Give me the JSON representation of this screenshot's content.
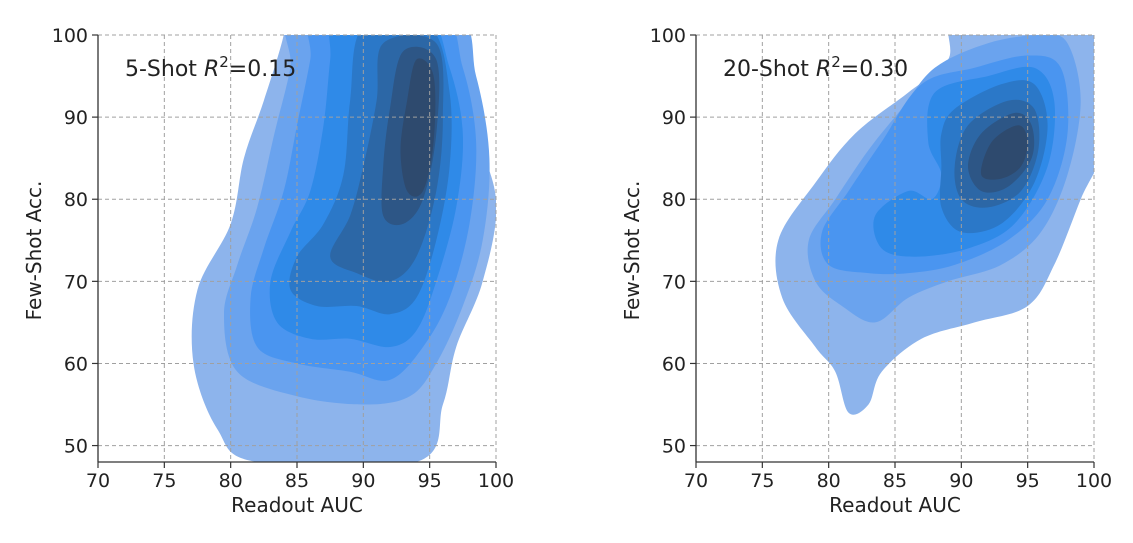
{
  "chart_data": [
    {
      "type": "area",
      "subtype": "kde-contour",
      "annotation": {
        "label": "5-Shot ",
        "r": "R",
        "sup": "2",
        "value": "=0.15"
      },
      "xlabel": "Readout AUC",
      "ylabel": "Few-Shot Acc.",
      "xlim": [
        70,
        100
      ],
      "ylim": [
        48,
        100
      ],
      "xticks": [
        70,
        75,
        80,
        85,
        90,
        95,
        100
      ],
      "yticks": [
        50,
        60,
        70,
        80,
        90,
        100
      ],
      "grid": true,
      "levels": [
        {
          "color": "#8db4ec",
          "polygon": [
            [
              84,
              103
            ],
            [
              96,
              103
            ],
            [
              98,
              90
            ],
            [
              100,
              80
            ],
            [
              99,
              70
            ],
            [
              97,
              62
            ],
            [
              96,
              55
            ],
            [
              94,
              48
            ],
            [
              82,
              48
            ],
            [
              79,
              52
            ],
            [
              77.2,
              60
            ],
            [
              77.5,
              69
            ],
            [
              80,
              77
            ],
            [
              81,
              85
            ],
            [
              82.5,
              92
            ],
            [
              84,
              100
            ]
          ]
        },
        {
          "color": "#6aa3ee",
          "polygon": [
            [
              85,
              103
            ],
            [
              96.5,
              103
            ],
            [
              98.5,
              95
            ],
            [
              99.5,
              85
            ],
            [
              99,
              75
            ],
            [
              97.5,
              67
            ],
            [
              95.5,
              60
            ],
            [
              93.5,
              56
            ],
            [
              90,
              55
            ],
            [
              85,
              56
            ],
            [
              80.5,
              59
            ],
            [
              79.5,
              66
            ],
            [
              80.5,
              72
            ],
            [
              82,
              79
            ],
            [
              83.3,
              88
            ],
            [
              84.5,
              96
            ]
          ]
        },
        {
          "color": "#4a95f0",
          "polygon": [
            [
              86.5,
              103
            ],
            [
              95.5,
              103
            ],
            [
              97.5,
              96
            ],
            [
              98.5,
              87
            ],
            [
              98,
              77
            ],
            [
              96.5,
              68
            ],
            [
              94.5,
              62
            ],
            [
              92,
              58
            ],
            [
              89,
              59
            ],
            [
              85,
              60
            ],
            [
              82,
              62
            ],
            [
              81.5,
              68
            ],
            [
              82.5,
              74
            ],
            [
              84,
              81
            ],
            [
              85,
              89
            ],
            [
              86,
              97
            ]
          ]
        },
        {
          "color": "#2f8ae8",
          "polygon": [
            [
              88,
              103
            ],
            [
              94.5,
              103
            ],
            [
              96.5,
              96
            ],
            [
              97.5,
              88
            ],
            [
              97,
              79
            ],
            [
              95.5,
              70
            ],
            [
              94,
              64
            ],
            [
              92,
              62
            ],
            [
              89,
              63
            ],
            [
              86,
              63
            ],
            [
              83.5,
              65
            ],
            [
              83,
              70
            ],
            [
              84.5,
              76
            ],
            [
              86,
              81
            ],
            [
              87,
              89
            ],
            [
              87.5,
              97
            ]
          ]
        },
        {
          "color": "#2b78c8",
          "polygon": [
            [
              90,
              101
            ],
            [
              95,
              101
            ],
            [
              96.5,
              93
            ],
            [
              96.5,
              84
            ],
            [
              95.5,
              75
            ],
            [
              94,
              68
            ],
            [
              92,
              66
            ],
            [
              89.5,
              67
            ],
            [
              86.5,
              67
            ],
            [
              84.5,
              69
            ],
            [
              85,
              73
            ],
            [
              87,
              77
            ],
            [
              88.5,
              83
            ],
            [
              89,
              92
            ]
          ]
        },
        {
          "color": "#2c67a6",
          "polygon": [
            [
              91.5,
              99
            ],
            [
              95.5,
              99
            ],
            [
              96,
              90
            ],
            [
              95.5,
              81
            ],
            [
              94,
              73
            ],
            [
              92,
              70
            ],
            [
              89.5,
              71
            ],
            [
              87.5,
              73
            ],
            [
              89,
              78
            ],
            [
              90,
              84
            ],
            [
              91,
              92
            ]
          ]
        },
        {
          "color": "#2d5686",
          "polygon": [
            [
              93,
              98
            ],
            [
              95.5,
              97
            ],
            [
              95.5,
              88
            ],
            [
              94.5,
              80
            ],
            [
              93,
              77
            ],
            [
              91.5,
              78
            ],
            [
              91.5,
              84
            ],
            [
              92,
              91
            ]
          ]
        },
        {
          "color": "#2e4a6e",
          "polygon": [
            [
              94,
              97
            ],
            [
              95.3,
              95
            ],
            [
              95.3,
              87
            ],
            [
              94.5,
              81
            ],
            [
              93.3,
              81
            ],
            [
              92.8,
              86
            ],
            [
              93.3,
              92
            ]
          ]
        }
      ]
    },
    {
      "type": "area",
      "subtype": "kde-contour",
      "annotation": {
        "label": "20-Shot ",
        "r": "R",
        "sup": "2",
        "value": "=0.30"
      },
      "xlabel": "Readout AUC",
      "ylabel": "Few-Shot Acc.",
      "xlim": [
        70,
        100
      ],
      "ylim": [
        48,
        100
      ],
      "xticks": [
        70,
        75,
        80,
        85,
        90,
        95,
        100
      ],
      "yticks": [
        50,
        60,
        70,
        80,
        90,
        100
      ],
      "grid": true,
      "levels": [
        {
          "color": "#8db4ec",
          "polygon": [
            [
              90,
              103
            ],
            [
              101,
              103
            ],
            [
              101,
              88
            ],
            [
              99,
              80
            ],
            [
              97,
              72
            ],
            [
              95,
              67
            ],
            [
              91,
              65
            ],
            [
              87,
              63
            ],
            [
              84,
              59
            ],
            [
              83,
              55
            ],
            [
              81.5,
              54
            ],
            [
              80.5,
              59
            ],
            [
              79,
              62
            ],
            [
              76.5,
              68
            ],
            [
              76.2,
              75
            ],
            [
              79,
              82
            ],
            [
              82,
              88
            ],
            [
              86,
              93
            ],
            [
              89,
              97
            ]
          ]
        },
        {
          "color": "#6aa3ee",
          "polygon": [
            [
              88,
              96
            ],
            [
              92,
              99
            ],
            [
              96,
              100
            ],
            [
              98,
              99
            ],
            [
              99,
              92
            ],
            [
              98,
              83
            ],
            [
              96,
              76
            ],
            [
              93,
              72
            ],
            [
              89,
              70
            ],
            [
              86,
              68
            ],
            [
              83.5,
              65
            ],
            [
              81,
              67
            ],
            [
              79,
              70
            ],
            [
              78.5,
              75
            ],
            [
              80.5,
              80
            ],
            [
              83,
              86
            ],
            [
              85.5,
              91
            ]
          ]
        },
        {
          "color": "#4a95f0",
          "polygon": [
            [
              87,
              94
            ],
            [
              91,
              96
            ],
            [
              95,
              97.5
            ],
            [
              97.5,
              96
            ],
            [
              98,
              88
            ],
            [
              96.5,
              80
            ],
            [
              93.5,
              75
            ],
            [
              89.5,
              72
            ],
            [
              86,
              71
            ],
            [
              83,
              71
            ],
            [
              80,
              72
            ],
            [
              79.5,
              76
            ],
            [
              81.5,
              81
            ],
            [
              84,
              87
            ]
          ]
        },
        {
          "color": "#2f8ae8",
          "polygon": [
            [
              88,
              93
            ],
            [
              92,
              95
            ],
            [
              95.5,
              96
            ],
            [
              97,
              92
            ],
            [
              96.5,
              84
            ],
            [
              94,
              77
            ],
            [
              90.5,
              74
            ],
            [
              86.5,
              73
            ],
            [
              84,
              74
            ],
            [
              83.5,
              78
            ],
            [
              86,
              81
            ],
            [
              87.8,
              80
            ],
            [
              88.5,
              83
            ],
            [
              87.5,
              87
            ]
          ]
        },
        {
          "color": "#2b78c8",
          "polygon": [
            [
              89.5,
              91
            ],
            [
              93,
              94
            ],
            [
              95.5,
              94
            ],
            [
              96.5,
              89
            ],
            [
              95.5,
              82
            ],
            [
              93,
              77
            ],
            [
              90,
              76
            ],
            [
              88.5,
              79
            ],
            [
              88.5,
              84
            ],
            [
              88.5,
              88
            ]
          ]
        },
        {
          "color": "#2c67a6",
          "polygon": [
            [
              90.5,
              89
            ],
            [
              93.5,
              92
            ],
            [
              95.5,
              91
            ],
            [
              95.8,
              86
            ],
            [
              94.5,
              81
            ],
            [
              92,
              79
            ],
            [
              90,
              80
            ],
            [
              89.5,
              84
            ]
          ]
        },
        {
          "color": "#2d5686",
          "polygon": [
            [
              91.5,
              88
            ],
            [
              94,
              90.5
            ],
            [
              95.3,
              89
            ],
            [
              95.3,
              85
            ],
            [
              93.5,
              81.5
            ],
            [
              91.5,
              81
            ],
            [
              90.5,
              84
            ]
          ]
        },
        {
          "color": "#2e4a6e",
          "polygon": [
            [
              92.3,
              87
            ],
            [
              94.3,
              89
            ],
            [
              95,
              87
            ],
            [
              94.5,
              84
            ],
            [
              93,
              82.5
            ],
            [
              91.5,
              83
            ]
          ]
        }
      ]
    }
  ]
}
